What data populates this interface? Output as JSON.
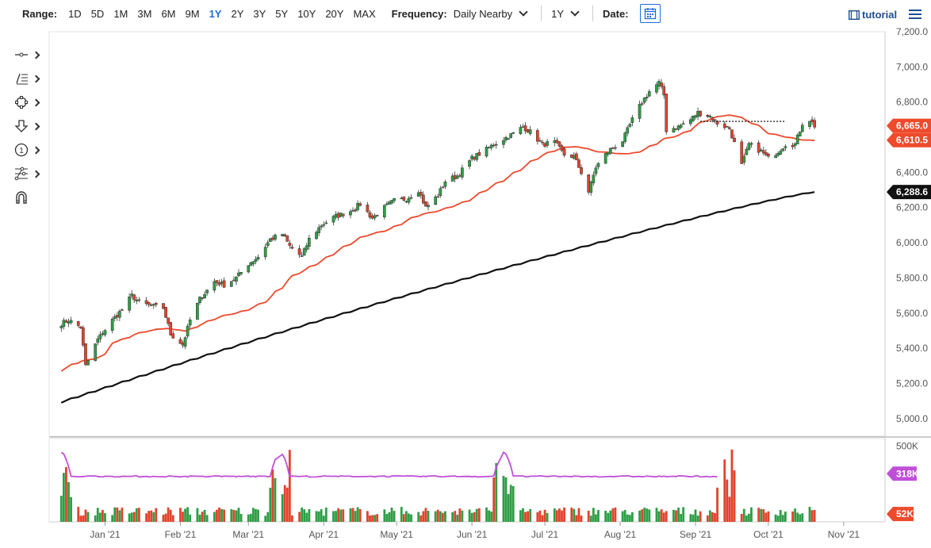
{
  "toolbar": {
    "range_label": "Range:",
    "ranges": [
      "1D",
      "5D",
      "1M",
      "3M",
      "6M",
      "9M",
      "1Y",
      "2Y",
      "3Y",
      "5Y",
      "10Y",
      "20Y",
      "MAX"
    ],
    "active_range": "1Y",
    "frequency_label": "Frequency:",
    "frequency_value": "Daily Nearby",
    "period_value": "1Y",
    "date_label": "Date:",
    "tutorial_label": "tutorial"
  },
  "tools": [
    "crosshair-tool-icon",
    "trendline-tool-icon",
    "shapes-tool-icon",
    "arrow-down-tool-icon",
    "number-tool-icon",
    "fibonacci-tool-icon",
    "magnet-tool-icon"
  ],
  "colors": {
    "up": "#2e9e46",
    "down": "#e2432d",
    "ma50": "#ee4a2c",
    "ma200": "#111111",
    "volume_avg": "#c04fd8",
    "accent": "#1d6fd6",
    "price_tag": "#ee4a2c",
    "ma200_tag": "#111111",
    "vol_avg_tag": "#c04fd8",
    "vol_tag": "#ee4a2c"
  },
  "chart_data": {
    "type": "candlestick",
    "price_axis": {
      "ticks": [
        "7,200.0",
        "7,000.0",
        "6,800.0",
        "6,600.0",
        "6,400.0",
        "6,200.0",
        "6,000.0",
        "5,800.0",
        "5,600.0",
        "5,400.0",
        "5,200.0",
        "5,000.0"
      ],
      "ylim": [
        4900,
        7200
      ]
    },
    "volume_axis": {
      "ticks": [
        "500K"
      ],
      "ylim": [
        0,
        550000
      ]
    },
    "x_labels": [
      "Jan '21",
      "Feb '21",
      "Mar '21",
      "Apr '21",
      "May '21",
      "Jun '21",
      "Jul '21",
      "Aug '21",
      "Sep '21",
      "Oct '21",
      "Nov '21"
    ],
    "close_series": [
      [
        "2020-12-14",
        5540
      ],
      [
        "2020-12-17",
        5560
      ],
      [
        "2020-12-22",
        5520
      ],
      [
        "2020-12-24",
        5300
      ],
      [
        "2020-12-29",
        5450
      ],
      [
        "2021-01-04",
        5560
      ],
      [
        "2021-01-08",
        5620
      ],
      [
        "2021-01-12",
        5700
      ],
      [
        "2021-01-15",
        5660
      ],
      [
        "2021-01-20",
        5640
      ],
      [
        "2021-01-25",
        5630
      ],
      [
        "2021-01-28",
        5480
      ],
      [
        "2021-02-02",
        5420
      ],
      [
        "2021-02-05",
        5560
      ],
      [
        "2021-02-09",
        5680
      ],
      [
        "2021-02-15",
        5780
      ],
      [
        "2021-02-19",
        5760
      ],
      [
        "2021-02-24",
        5800
      ],
      [
        "2021-03-01",
        5880
      ],
      [
        "2021-03-05",
        5920
      ],
      [
        "2021-03-10",
        6020
      ],
      [
        "2021-03-15",
        6050
      ],
      [
        "2021-03-18",
        5980
      ],
      [
        "2021-03-23",
        5920
      ],
      [
        "2021-03-26",
        6020
      ],
      [
        "2021-03-31",
        6100
      ],
      [
        "2021-04-06",
        6150
      ],
      [
        "2021-04-12",
        6180
      ],
      [
        "2021-04-16",
        6220
      ],
      [
        "2021-04-21",
        6140
      ],
      [
        "2021-04-26",
        6200
      ],
      [
        "2021-04-30",
        6240
      ],
      [
        "2021-05-05",
        6250
      ],
      [
        "2021-05-10",
        6300
      ],
      [
        "2021-05-13",
        6200
      ],
      [
        "2021-05-18",
        6270
      ],
      [
        "2021-05-21",
        6350
      ],
      [
        "2021-05-26",
        6380
      ],
      [
        "2021-06-01",
        6480
      ],
      [
        "2021-06-07",
        6530
      ],
      [
        "2021-06-10",
        6560
      ],
      [
        "2021-06-14",
        6590
      ],
      [
        "2021-06-18",
        6620
      ],
      [
        "2021-06-22",
        6660
      ],
      [
        "2021-06-25",
        6630
      ],
      [
        "2021-06-30",
        6560
      ],
      [
        "2021-07-05",
        6570
      ],
      [
        "2021-07-09",
        6500
      ],
      [
        "2021-07-13",
        6490
      ],
      [
        "2021-07-16",
        6400
      ],
      [
        "2021-07-19",
        6290
      ],
      [
        "2021-07-22",
        6430
      ],
      [
        "2021-07-27",
        6520
      ],
      [
        "2021-08-02",
        6580
      ],
      [
        "2021-08-06",
        6700
      ],
      [
        "2021-08-10",
        6800
      ],
      [
        "2021-08-13",
        6860
      ],
      [
        "2021-08-17",
        6910
      ],
      [
        "2021-08-19",
        6840
      ],
      [
        "2021-08-20",
        6640
      ],
      [
        "2021-08-25",
        6660
      ],
      [
        "2021-08-30",
        6700
      ],
      [
        "2021-09-02",
        6740
      ],
      [
        "2021-09-07",
        6720
      ],
      [
        "2021-09-10",
        6680
      ],
      [
        "2021-09-15",
        6650
      ],
      [
        "2021-09-20",
        6440
      ],
      [
        "2021-09-23",
        6560
      ],
      [
        "2021-09-28",
        6520
      ],
      [
        "2021-10-01",
        6480
      ],
      [
        "2021-10-05",
        6520
      ],
      [
        "2021-10-08",
        6560
      ],
      [
        "2021-10-12",
        6560
      ],
      [
        "2021-10-15",
        6680
      ],
      [
        "2021-10-18",
        6700
      ],
      [
        "2021-10-20",
        6665
      ]
    ],
    "last_price": "6,665.0",
    "ma50_label": "6,610.5",
    "ma200_label": "6,288.6",
    "resistance_level": 6690,
    "volume_avg_label": "318K",
    "volume_label": "52K"
  }
}
